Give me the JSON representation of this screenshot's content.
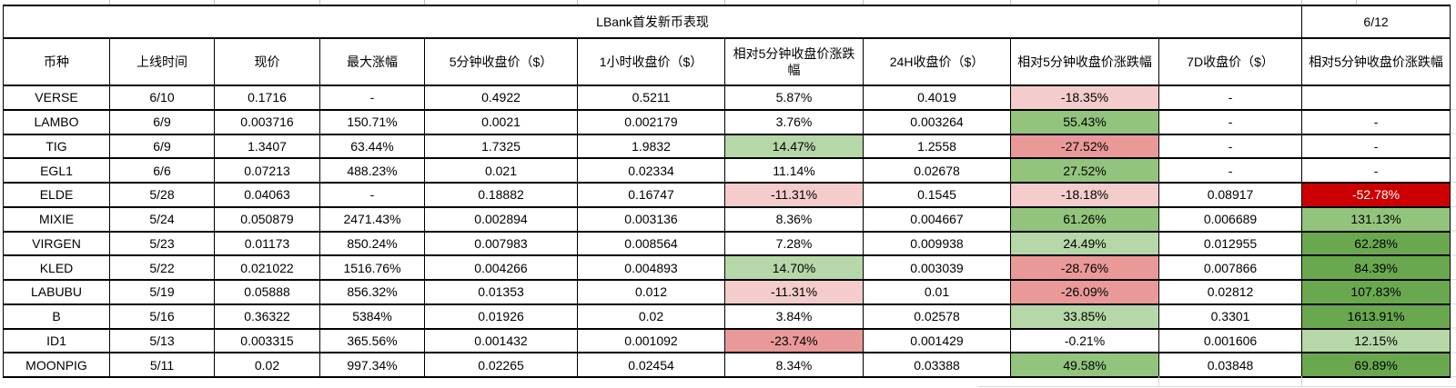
{
  "sheet": {
    "title": "LBank首发新币表现",
    "date": "6/12"
  },
  "colors": {
    "light_red": "#f4cccc",
    "red": "#ea9999",
    "dark_red": "#cc0000",
    "light_green": "#b6d7a8",
    "green": "#93c47d",
    "dark_green": "#6aa84f"
  },
  "table": {
    "headers": [
      "币种",
      "上线时间",
      "现价",
      "最大涨幅",
      "5分钟收盘价（$）",
      "1小时收盘价（$）",
      "相对5分钟收盘价涨跌幅",
      "24H收盘价（$）",
      "相对5分钟收盘价涨跌幅",
      "7D收盘价（$）",
      "相对5分钟收盘价涨跌幅"
    ],
    "rows": [
      {
        "cells": [
          "VERSE",
          "6/10",
          "0.1716",
          "-",
          "0.4922",
          "0.5211",
          "5.87%",
          "0.4019",
          "-18.35%",
          "-",
          ""
        ],
        "fills": [
          "",
          "",
          "",
          "",
          "",
          "",
          "",
          "",
          "light_red",
          "",
          ""
        ]
      },
      {
        "cells": [
          "LAMBO",
          "6/9",
          "0.003716",
          "150.71%",
          "0.0021",
          "0.002179",
          "3.76%",
          "0.003264",
          "55.43%",
          "-",
          "-"
        ],
        "fills": [
          "",
          "",
          "",
          "",
          "",
          "",
          "",
          "",
          "green",
          "",
          ""
        ]
      },
      {
        "cells": [
          "TIG",
          "6/9",
          "1.3407",
          "63.44%",
          "1.7325",
          "1.9832",
          "14.47%",
          "1.2558",
          "-27.52%",
          "-",
          "-"
        ],
        "fills": [
          "",
          "",
          "",
          "",
          "",
          "",
          "light_green",
          "",
          "red",
          "",
          ""
        ]
      },
      {
        "cells": [
          "EGL1",
          "6/6",
          "0.07213",
          "488.23%",
          "0.021",
          "0.02334",
          "11.14%",
          "0.02678",
          "27.52%",
          "-",
          "-"
        ],
        "fills": [
          "",
          "",
          "",
          "",
          "",
          "",
          "",
          "",
          "green",
          "",
          ""
        ]
      },
      {
        "cells": [
          "ELDE",
          "5/28",
          "0.04063",
          "-",
          "0.18882",
          "0.16747",
          "-11.31%",
          "0.1545",
          "-18.18%",
          "0.08917",
          "-52.78%"
        ],
        "fills": [
          "",
          "",
          "",
          "",
          "",
          "",
          "light_red",
          "",
          "light_red",
          "",
          "dark_red"
        ]
      },
      {
        "cells": [
          "MIXIE",
          "5/24",
          "0.050879",
          "2471.43%",
          "0.002894",
          "0.003136",
          "8.36%",
          "0.004667",
          "61.26%",
          "0.006689",
          "131.13%"
        ],
        "fills": [
          "",
          "",
          "",
          "",
          "",
          "",
          "",
          "",
          "green",
          "",
          "green"
        ]
      },
      {
        "cells": [
          "VIRGEN",
          "5/23",
          "0.01173",
          "850.24%",
          "0.007983",
          "0.008564",
          "7.28%",
          "0.009938",
          "24.49%",
          "0.012955",
          "62.28%"
        ],
        "fills": [
          "",
          "",
          "",
          "",
          "",
          "",
          "",
          "",
          "light_green",
          "",
          "dark_green"
        ]
      },
      {
        "cells": [
          "KLED",
          "5/22",
          "0.021022",
          "1516.76%",
          "0.004266",
          "0.004893",
          "14.70%",
          "0.003039",
          "-28.76%",
          "0.007866",
          "84.39%"
        ],
        "fills": [
          "",
          "",
          "",
          "",
          "",
          "",
          "light_green",
          "",
          "red",
          "",
          "dark_green"
        ]
      },
      {
        "cells": [
          "LABUBU",
          "5/19",
          "0.05888",
          "856.32%",
          "0.01353",
          "0.012",
          "-11.31%",
          "0.01",
          "-26.09%",
          "0.02812",
          "107.83%"
        ],
        "fills": [
          "",
          "",
          "",
          "",
          "",
          "",
          "light_red",
          "",
          "red",
          "",
          "dark_green"
        ]
      },
      {
        "cells": [
          "B",
          "5/16",
          "0.36322",
          "5384%",
          "0.01926",
          "0.02",
          "3.84%",
          "0.02578",
          "33.85%",
          "0.3301",
          "1613.91%"
        ],
        "fills": [
          "",
          "",
          "",
          "",
          "",
          "",
          "",
          "",
          "light_green",
          "",
          "dark_green"
        ]
      },
      {
        "cells": [
          "ID1",
          "5/13",
          "0.003315",
          "365.56%",
          "0.001432",
          "0.001092",
          "-23.74%",
          "0.001429",
          "-0.21%",
          "0.001606",
          "12.15%"
        ],
        "fills": [
          "",
          "",
          "",
          "",
          "",
          "",
          "red",
          "",
          "",
          "",
          "light_green"
        ]
      },
      {
        "cells": [
          "MOONPIG",
          "5/11",
          "0.02",
          "997.34%",
          "0.02265",
          "0.02454",
          "8.34%",
          "0.03388",
          "49.58%",
          "0.03848",
          "69.89%"
        ],
        "fills": [
          "",
          "",
          "",
          "",
          "",
          "",
          "",
          "",
          "green",
          "",
          "dark_green"
        ]
      }
    ]
  }
}
